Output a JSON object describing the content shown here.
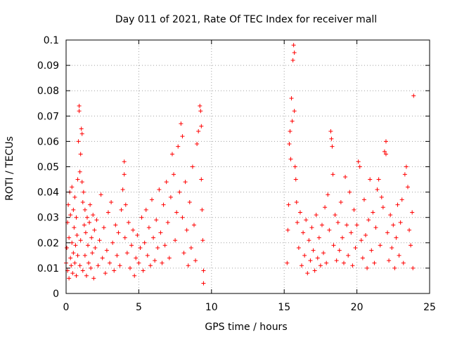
{
  "chart_data": {
    "type": "scatter",
    "title": "Day 011 of 2021, Rate Of TEC Index for receiver mall",
    "xlabel": "GPS time / hours",
    "ylabel": "ROTI / TECUs",
    "xlim": [
      0,
      25
    ],
    "ylim": [
      0,
      0.1
    ],
    "xticks": [
      0,
      5,
      10,
      15,
      20,
      25
    ],
    "xtick_labels": [
      "0",
      "5",
      "10",
      "15",
      "20",
      "25"
    ],
    "yticks": [
      0,
      0.01,
      0.02,
      0.03,
      0.04,
      0.05,
      0.06,
      0.07,
      0.08,
      0.09,
      0.1
    ],
    "ytick_labels": [
      "0",
      "0.01",
      "0.02",
      "0.03",
      "0.04",
      "0.05",
      "0.06",
      "0.07",
      "0.08",
      "0.09",
      "0.1"
    ],
    "grid": true,
    "marker": "+",
    "color": "#ff0000",
    "series": [
      {
        "points": [
          [
            0.0,
            0.012
          ],
          [
            0.05,
            0.018
          ],
          [
            0.1,
            0.028
          ],
          [
            0.1,
            0.009
          ],
          [
            0.15,
            0.035
          ],
          [
            0.2,
            0.022
          ],
          [
            0.2,
            0.006
          ],
          [
            0.25,
            0.04
          ],
          [
            0.3,
            0.031
          ],
          [
            0.3,
            0.014
          ],
          [
            0.35,
            0.011
          ],
          [
            0.4,
            0.042
          ],
          [
            0.4,
            0.02
          ],
          [
            0.45,
            0.008
          ],
          [
            0.5,
            0.033
          ],
          [
            0.5,
            0.016
          ],
          [
            0.55,
            0.026
          ],
          [
            0.6,
            0.012
          ],
          [
            0.6,
            0.038
          ],
          [
            0.65,
            0.019
          ],
          [
            0.7,
            0.007
          ],
          [
            0.7,
            0.03
          ],
          [
            0.75,
            0.023
          ],
          [
            0.8,
            0.045
          ],
          [
            0.8,
            0.015
          ],
          [
            0.85,
            0.06
          ],
          [
            0.9,
            0.074
          ],
          [
            0.9,
            0.072
          ],
          [
            0.95,
            0.048
          ],
          [
            0.95,
            0.011
          ],
          [
            1.0,
            0.055
          ],
          [
            1.0,
            0.021
          ],
          [
            1.05,
            0.065
          ],
          [
            1.1,
            0.063
          ],
          [
            1.1,
            0.044
          ],
          [
            1.15,
            0.036
          ],
          [
            1.15,
            0.009
          ],
          [
            1.2,
            0.04
          ],
          [
            1.25,
            0.027
          ],
          [
            1.3,
            0.015
          ],
          [
            1.3,
            0.033
          ],
          [
            1.35,
            0.024
          ],
          [
            1.4,
            0.007
          ],
          [
            1.45,
            0.03
          ],
          [
            1.5,
            0.019
          ],
          [
            1.55,
            0.012
          ],
          [
            1.6,
            0.028
          ],
          [
            1.65,
            0.035
          ],
          [
            1.7,
            0.01
          ],
          [
            1.75,
            0.022
          ],
          [
            1.8,
            0.016
          ],
          [
            1.85,
            0.031
          ],
          [
            1.9,
            0.006
          ],
          [
            1.95,
            0.025
          ],
          [
            2.0,
            0.018
          ],
          [
            2.1,
            0.029
          ],
          [
            2.2,
            0.011
          ],
          [
            2.3,
            0.021
          ],
          [
            2.4,
            0.039
          ],
          [
            2.5,
            0.014
          ],
          [
            2.6,
            0.026
          ],
          [
            2.7,
            0.008
          ],
          [
            2.8,
            0.017
          ],
          [
            2.9,
            0.032
          ],
          [
            3.0,
            0.012
          ],
          [
            3.1,
            0.036
          ],
          [
            3.2,
            0.02
          ],
          [
            3.3,
            0.009
          ],
          [
            3.4,
            0.027
          ],
          [
            3.5,
            0.015
          ],
          [
            3.6,
            0.024
          ],
          [
            3.7,
            0.011
          ],
          [
            3.8,
            0.033
          ],
          [
            3.9,
            0.041
          ],
          [
            4.0,
            0.052
          ],
          [
            4.0,
            0.047
          ],
          [
            4.05,
            0.022
          ],
          [
            4.1,
            0.035
          ],
          [
            4.2,
            0.016
          ],
          [
            4.3,
            0.028
          ],
          [
            4.4,
            0.01
          ],
          [
            4.5,
            0.019
          ],
          [
            4.6,
            0.025
          ],
          [
            4.7,
            0.007
          ],
          [
            4.8,
            0.014
          ],
          [
            4.9,
            0.023
          ],
          [
            5.0,
            0.012
          ],
          [
            5.1,
            0.018
          ],
          [
            5.2,
            0.03
          ],
          [
            5.3,
            0.009
          ],
          [
            5.4,
            0.02
          ],
          [
            5.5,
            0.033
          ],
          [
            5.6,
            0.015
          ],
          [
            5.7,
            0.026
          ],
          [
            5.8,
            0.011
          ],
          [
            5.9,
            0.037
          ],
          [
            6.0,
            0.022
          ],
          [
            6.1,
            0.013
          ],
          [
            6.2,
            0.029
          ],
          [
            6.3,
            0.018
          ],
          [
            6.4,
            0.041
          ],
          [
            6.5,
            0.024
          ],
          [
            6.6,
            0.012
          ],
          [
            6.7,
            0.035
          ],
          [
            6.8,
            0.019
          ],
          [
            6.9,
            0.044
          ],
          [
            7.0,
            0.028
          ],
          [
            7.1,
            0.014
          ],
          [
            7.2,
            0.038
          ],
          [
            7.3,
            0.055
          ],
          [
            7.4,
            0.047
          ],
          [
            7.5,
            0.021
          ],
          [
            7.6,
            0.032
          ],
          [
            7.7,
            0.058
          ],
          [
            7.8,
            0.04
          ],
          [
            7.9,
            0.067
          ],
          [
            8.0,
            0.062
          ],
          [
            8.0,
            0.03
          ],
          [
            8.1,
            0.016
          ],
          [
            8.2,
            0.044
          ],
          [
            8.3,
            0.025
          ],
          [
            8.4,
            0.011
          ],
          [
            8.5,
            0.036
          ],
          [
            8.6,
            0.018
          ],
          [
            8.7,
            0.05
          ],
          [
            8.8,
            0.027
          ],
          [
            8.9,
            0.013
          ],
          [
            9.0,
            0.059
          ],
          [
            9.1,
            0.064
          ],
          [
            9.2,
            0.074
          ],
          [
            9.25,
            0.072
          ],
          [
            9.3,
            0.066
          ],
          [
            9.3,
            0.045
          ],
          [
            9.35,
            0.033
          ],
          [
            9.4,
            0.021
          ],
          [
            9.45,
            0.009
          ],
          [
            9.45,
            0.004
          ]
        ]
      },
      {
        "points": [
          [
            15.2,
            0.012
          ],
          [
            15.25,
            0.025
          ],
          [
            15.3,
            0.035
          ],
          [
            15.35,
            0.059
          ],
          [
            15.4,
            0.064
          ],
          [
            15.45,
            0.053
          ],
          [
            15.5,
            0.077
          ],
          [
            15.55,
            0.068
          ],
          [
            15.6,
            0.092
          ],
          [
            15.65,
            0.098
          ],
          [
            15.7,
            0.095
          ],
          [
            15.7,
            0.072
          ],
          [
            15.75,
            0.05
          ],
          [
            15.8,
            0.045
          ],
          [
            15.85,
            0.036
          ],
          [
            15.9,
            0.028
          ],
          [
            16.0,
            0.018
          ],
          [
            16.1,
            0.032
          ],
          [
            16.2,
            0.011
          ],
          [
            16.3,
            0.024
          ],
          [
            16.4,
            0.015
          ],
          [
            16.5,
            0.029
          ],
          [
            16.6,
            0.008
          ],
          [
            16.7,
            0.021
          ],
          [
            16.8,
            0.013
          ],
          [
            16.9,
            0.026
          ],
          [
            17.0,
            0.017
          ],
          [
            17.1,
            0.009
          ],
          [
            17.2,
            0.031
          ],
          [
            17.3,
            0.014
          ],
          [
            17.4,
            0.022
          ],
          [
            17.5,
            0.011
          ],
          [
            17.6,
            0.027
          ],
          [
            17.7,
            0.016
          ],
          [
            17.8,
            0.034
          ],
          [
            17.9,
            0.012
          ],
          [
            18.0,
            0.039
          ],
          [
            18.1,
            0.025
          ],
          [
            18.2,
            0.064
          ],
          [
            18.25,
            0.061
          ],
          [
            18.3,
            0.058
          ],
          [
            18.35,
            0.047
          ],
          [
            18.4,
            0.019
          ],
          [
            18.5,
            0.031
          ],
          [
            18.6,
            0.013
          ],
          [
            18.7,
            0.028
          ],
          [
            18.8,
            0.017
          ],
          [
            18.9,
            0.036
          ],
          [
            19.0,
            0.022
          ],
          [
            19.1,
            0.012
          ],
          [
            19.2,
            0.046
          ],
          [
            19.3,
            0.027
          ],
          [
            19.4,
            0.015
          ],
          [
            19.5,
            0.04
          ],
          [
            19.6,
            0.024
          ],
          [
            19.7,
            0.011
          ],
          [
            19.8,
            0.033
          ],
          [
            19.9,
            0.018
          ],
          [
            20.0,
            0.027
          ],
          [
            20.1,
            0.052
          ],
          [
            20.2,
            0.05
          ],
          [
            20.3,
            0.021
          ],
          [
            20.4,
            0.014
          ],
          [
            20.5,
            0.037
          ],
          [
            20.6,
            0.023
          ],
          [
            20.7,
            0.01
          ],
          [
            20.8,
            0.029
          ],
          [
            20.9,
            0.045
          ],
          [
            21.0,
            0.017
          ],
          [
            21.1,
            0.032
          ],
          [
            21.2,
            0.012
          ],
          [
            21.3,
            0.026
          ],
          [
            21.4,
            0.041
          ],
          [
            21.5,
            0.045
          ],
          [
            21.6,
            0.019
          ],
          [
            21.7,
            0.038
          ],
          [
            21.8,
            0.034
          ],
          [
            21.9,
            0.056
          ],
          [
            22.0,
            0.06
          ],
          [
            22.0,
            0.055
          ],
          [
            22.1,
            0.024
          ],
          [
            22.2,
            0.013
          ],
          [
            22.3,
            0.031
          ],
          [
            22.4,
            0.018
          ],
          [
            22.5,
            0.027
          ],
          [
            22.6,
            0.01
          ],
          [
            22.7,
            0.022
          ],
          [
            22.8,
            0.035
          ],
          [
            22.9,
            0.015
          ],
          [
            23.0,
            0.028
          ],
          [
            23.1,
            0.037
          ],
          [
            23.2,
            0.012
          ],
          [
            23.3,
            0.047
          ],
          [
            23.4,
            0.05
          ],
          [
            23.5,
            0.042
          ],
          [
            23.6,
            0.025
          ],
          [
            23.7,
            0.019
          ],
          [
            23.8,
            0.032
          ],
          [
            23.85,
            0.01
          ],
          [
            23.9,
            0.078
          ]
        ]
      }
    ]
  }
}
